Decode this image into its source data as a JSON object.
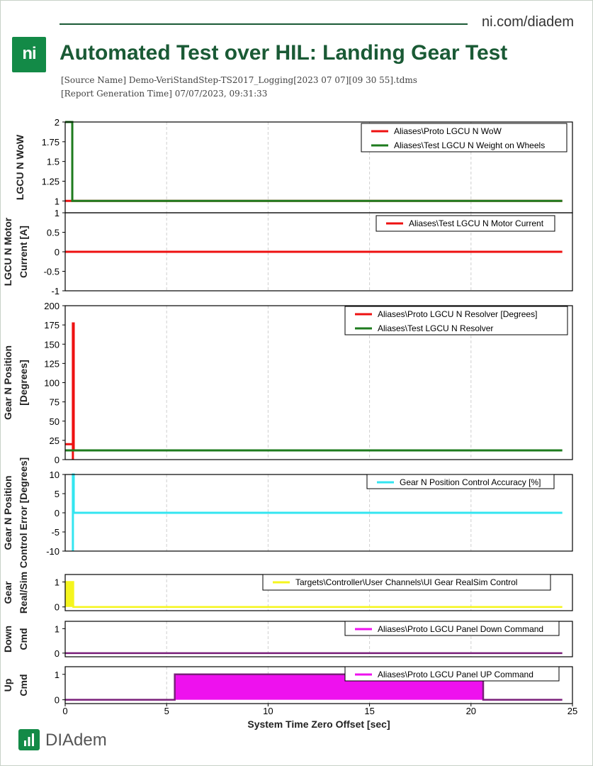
{
  "header": {
    "site": "ni.com/diadem",
    "logo_text": "ni",
    "title": "Automated Test over HIL: Landing Gear Test",
    "source_name": "[Source Name] Demo-VeriStandStep-TS2017_Logging[2023 07 07][09 30 55].tdms",
    "report_time": "[Report Generation Time] 07/07/2023, 09:31:33"
  },
  "footer": {
    "brand": "DIAdem"
  },
  "colors": {
    "red": "#ee1111",
    "green": "#1e7b1e",
    "cyan": "#33e5f0",
    "yellow": "#f5f51e",
    "magenta": "#ee11ee",
    "purple": "#7a1f7a",
    "brand": "#138a47"
  },
  "chart_data": {
    "type": "line",
    "shared_x": {
      "label": "System Time Zero Offset [sec]",
      "lim": [
        0,
        25
      ],
      "ticks": [
        "0",
        "5",
        "10",
        "15",
        "20",
        "25"
      ]
    },
    "grid": "vertical dashed",
    "legend_placement": "top-right",
    "panels": [
      {
        "ylabel": [
          "LGCU N WoW"
        ],
        "ylim": [
          0.85,
          2
        ],
        "yticks": [
          "2",
          "1.75",
          "1.5",
          "1.25",
          "1"
        ],
        "series": [
          {
            "name": "Aliases\\Proto LGCU N WoW",
            "color": "#ee1111",
            "x": [
              0,
              0.35,
              24.5
            ],
            "y": [
              1,
              1,
              1
            ]
          },
          {
            "name": "Aliases\\Test LGCU N Weight on Wheels",
            "color": "#1e7b1e",
            "x": [
              0,
              0.35,
              0.35,
              24.5
            ],
            "y": [
              2,
              2,
              1,
              1
            ]
          }
        ]
      },
      {
        "ylabel": [
          "LGCU N Motor",
          "Current [A]"
        ],
        "ylim": [
          -1,
          1
        ],
        "yticks": [
          "1",
          "0.5",
          "0",
          "-0.5",
          "-1"
        ],
        "series": [
          {
            "name": "Aliases\\Test LGCU N Motor Current",
            "color": "#ee1111",
            "x": [
              0,
              24.5
            ],
            "y": [
              0,
              0
            ]
          }
        ]
      },
      {
        "ylabel": [
          "Gear N Position",
          "[Degrees]"
        ],
        "ylim": [
          0,
          200
        ],
        "yticks": [
          "200",
          "175",
          "150",
          "125",
          "100",
          "75",
          "50",
          "25",
          "0"
        ],
        "series": [
          {
            "name": "Aliases\\Proto LGCU N Resolver [Degrees]",
            "color": "#ee1111",
            "x": [
              0,
              0.38,
              0.38,
              0.38,
              0.42,
              0.42
            ],
            "y": [
              20,
              20,
              0,
              177,
              177,
              12
            ]
          },
          {
            "name": "Aliases\\Test LGCU N Resolver",
            "color": "#1e7b1e",
            "x": [
              0,
              24.5
            ],
            "y": [
              12,
              12
            ]
          }
        ]
      },
      {
        "ylabel": [
          "Gear N Position",
          "Control Error [Degrees]"
        ],
        "ylim": [
          -10,
          10
        ],
        "yticks": [
          "10",
          "5",
          "0",
          "-5",
          "-10"
        ],
        "series": [
          {
            "name": "Gear N Position Control Accuracy [%]",
            "color": "#33e5f0",
            "x": [
              0.38,
              0.38,
              0.42,
              0.42,
              24.5
            ],
            "y": [
              -10,
              10,
              10,
              0,
              0
            ]
          }
        ]
      },
      {
        "ylabel": [
          "Gear",
          "Real/Sim"
        ],
        "ylim": [
          -0.15,
          1.3
        ],
        "yticks": [
          "1",
          "0"
        ],
        "series": [
          {
            "name": "Targets\\Controller\\User Channels\\UI Gear RealSim Control",
            "color": "#f5f51e",
            "fill": true,
            "x": [
              0,
              0.4,
              0.4,
              24.5
            ],
            "y": [
              1,
              1,
              0,
              0
            ]
          }
        ]
      },
      {
        "ylabel": [
          "Down",
          "Cmd"
        ],
        "ylim": [
          -0.15,
          1.3
        ],
        "yticks": [
          "1",
          "0"
        ],
        "series": [
          {
            "name": "Aliases\\Proto LGCU Panel Down Command",
            "color": "#ee11ee",
            "line_color": "#7a1f7a",
            "x": [
              0,
              24.5
            ],
            "y": [
              0,
              0
            ]
          }
        ]
      },
      {
        "ylabel": [
          "Up",
          "Cmd"
        ],
        "ylim": [
          -0.15,
          1.3
        ],
        "yticks": [
          "1",
          "0"
        ],
        "series": [
          {
            "name": "Aliases\\Proto LGCU Panel UP Command",
            "color": "#ee11ee",
            "line_color": "#7a1f7a",
            "fill": true,
            "x": [
              0,
              5.4,
              5.4,
              20.6,
              20.6,
              24.5
            ],
            "y": [
              0,
              0,
              1,
              1,
              0,
              0
            ]
          }
        ]
      }
    ]
  }
}
